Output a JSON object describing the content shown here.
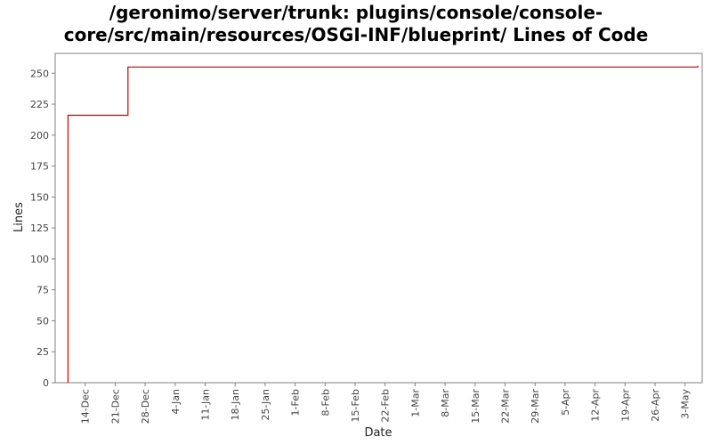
{
  "chart_data": {
    "type": "line",
    "title_line1": "/geronimo/server/trunk: plugins/console/console-",
    "title_line2": "core/src/main/resources/OSGI-INF/blueprint/ Lines of Code",
    "xlabel": "Date",
    "ylabel": "Lines",
    "ylim": [
      0,
      266
    ],
    "yticks": [
      0,
      25,
      50,
      75,
      100,
      125,
      150,
      175,
      200,
      225,
      250
    ],
    "xlim": [
      "2008-12-07",
      "2009-05-07"
    ],
    "xticks": [
      {
        "date": "2008-12-14",
        "label": "14-Dec"
      },
      {
        "date": "2008-12-21",
        "label": "21-Dec"
      },
      {
        "date": "2008-12-28",
        "label": "28-Dec"
      },
      {
        "date": "2009-01-04",
        "label": "4-Jan"
      },
      {
        "date": "2009-01-11",
        "label": "11-Jan"
      },
      {
        "date": "2009-01-18",
        "label": "18-Jan"
      },
      {
        "date": "2009-01-25",
        "label": "25-Jan"
      },
      {
        "date": "2009-02-01",
        "label": "1-Feb"
      },
      {
        "date": "2009-02-08",
        "label": "8-Feb"
      },
      {
        "date": "2009-02-15",
        "label": "15-Feb"
      },
      {
        "date": "2009-02-22",
        "label": "22-Feb"
      },
      {
        "date": "2009-03-01",
        "label": "1-Mar"
      },
      {
        "date": "2009-03-08",
        "label": "8-Mar"
      },
      {
        "date": "2009-03-15",
        "label": "15-Mar"
      },
      {
        "date": "2009-03-22",
        "label": "22-Mar"
      },
      {
        "date": "2009-03-29",
        "label": "29-Mar"
      },
      {
        "date": "2009-04-05",
        "label": "5-Apr"
      },
      {
        "date": "2009-04-12",
        "label": "12-Apr"
      },
      {
        "date": "2009-04-19",
        "label": "19-Apr"
      },
      {
        "date": "2009-04-26",
        "label": "26-Apr"
      },
      {
        "date": "2009-05-03",
        "label": "3-May"
      }
    ],
    "grid": false,
    "step": true,
    "series": [
      {
        "color": "#cc0000",
        "points": [
          {
            "x": "2008-12-10",
            "y": 0
          },
          {
            "x": "2008-12-10",
            "y": 216
          },
          {
            "x": "2008-12-24",
            "y": 216
          },
          {
            "x": "2008-12-24",
            "y": 255
          },
          {
            "x": "2009-05-06",
            "y": 255
          },
          {
            "x": "2009-05-06",
            "y": 256
          }
        ]
      }
    ]
  }
}
